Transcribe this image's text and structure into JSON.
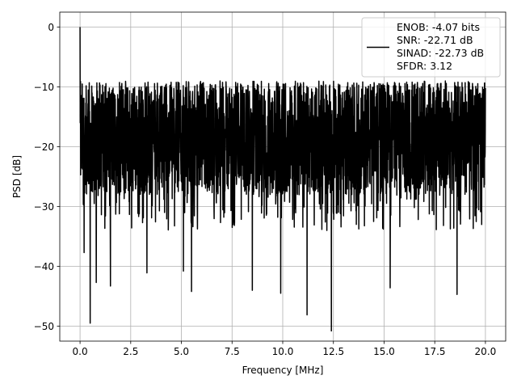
{
  "chart_data": {
    "type": "line",
    "title": "",
    "xlabel": "Frequency [MHz]",
    "ylabel": "PSD [dB]",
    "xlim": [
      -1.0,
      21.0
    ],
    "ylim": [
      -52.5,
      2.5
    ],
    "x_ticks": [
      0.0,
      2.5,
      5.0,
      7.5,
      10.0,
      12.5,
      15.0,
      17.5,
      20.0
    ],
    "x_tick_labels": [
      "0.0",
      "2.5",
      "5.0",
      "7.5",
      "10.0",
      "12.5",
      "15.0",
      "17.5",
      "20.0"
    ],
    "y_ticks": [
      0,
      -10,
      -20,
      -30,
      -40,
      -50
    ],
    "y_tick_labels": [
      "0",
      "−10",
      "−20",
      "−30",
      "−40",
      "−50"
    ],
    "grid": true,
    "legend_position": "top-right",
    "line_color": "#000000",
    "series": [
      {
        "name": "",
        "x_start": 0.0,
        "x_end": 20.0,
        "dc_peak_db": 0.0,
        "band_upper_db": -9.0,
        "band_lower_db": -28.0,
        "deep_notches": [
          {
            "x": 0.2,
            "y": -37.7
          },
          {
            "x": 0.5,
            "y": -49.5
          },
          {
            "x": 0.8,
            "y": -42.7
          },
          {
            "x": 1.5,
            "y": -43.3
          },
          {
            "x": 3.3,
            "y": -41.1
          },
          {
            "x": 5.1,
            "y": -40.8
          },
          {
            "x": 5.5,
            "y": -44.2
          },
          {
            "x": 8.5,
            "y": -44.0
          },
          {
            "x": 9.9,
            "y": -44.5
          },
          {
            "x": 11.2,
            "y": -48.1
          },
          {
            "x": 12.4,
            "y": -50.8
          },
          {
            "x": 15.3,
            "y": -43.6
          },
          {
            "x": 18.6,
            "y": -44.7
          }
        ]
      }
    ],
    "legend_lines": [
      "ENOB: -4.07 bits",
      "SNR: -22.71 dB",
      "SINAD: -22.73 dB",
      "SFDR: 3.12"
    ]
  }
}
